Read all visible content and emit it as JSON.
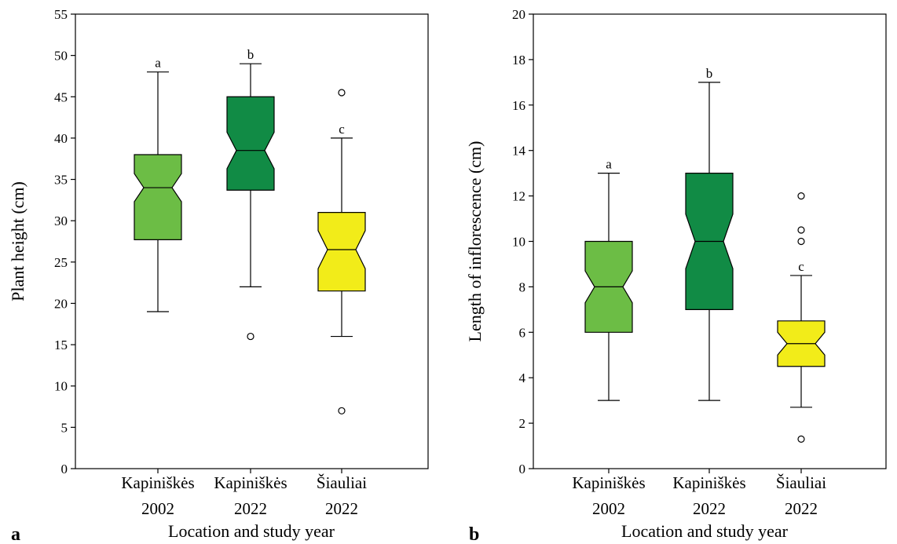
{
  "chart_data": [
    {
      "type": "boxplot",
      "panel_label": "a",
      "ylabel": "Plant height (cm)",
      "xlabel": "Location and study year",
      "ylim": [
        0,
        55
      ],
      "yticks": [
        0,
        5,
        10,
        15,
        20,
        25,
        30,
        35,
        40,
        45,
        50,
        55
      ],
      "notched": true,
      "grid": false,
      "categories": [
        {
          "line1": "Kapiniškės",
          "line2": "2002"
        },
        {
          "line1": "Kapiniškės",
          "line2": "2022"
        },
        {
          "line1": "Šiauliai",
          "line2": "2022"
        }
      ],
      "boxes": [
        {
          "whisker_low": 19,
          "q1": 27.7,
          "median": 34,
          "q3": 38,
          "whisker_high": 48,
          "notch_low": 32.3,
          "notch_high": 35.7,
          "outliers": [],
          "letter": "a",
          "color": "#6cbd45"
        },
        {
          "whisker_low": 22,
          "q1": 33.7,
          "median": 38.5,
          "q3": 45,
          "whisker_high": 49,
          "notch_low": 36.3,
          "notch_high": 40.7,
          "outliers": [
            16
          ],
          "letter": "b",
          "color": "#118b45"
        },
        {
          "whisker_low": 16,
          "q1": 21.5,
          "median": 26.5,
          "q3": 31,
          "whisker_high": 40,
          "notch_low": 24.2,
          "notch_high": 28.8,
          "outliers": [
            45.5,
            7
          ],
          "letter": "c",
          "color": "#f2ec19"
        }
      ]
    },
    {
      "type": "boxplot",
      "panel_label": "b",
      "ylabel": "Length of inflorescence (cm)",
      "xlabel": "Location and study year",
      "ylim": [
        0,
        20
      ],
      "yticks": [
        0,
        2,
        4,
        6,
        8,
        10,
        12,
        14,
        16,
        18,
        20
      ],
      "notched": true,
      "grid": false,
      "categories": [
        {
          "line1": "Kapiniškės",
          "line2": "2002"
        },
        {
          "line1": "Kapiniškės",
          "line2": "2022"
        },
        {
          "line1": "Šiauliai",
          "line2": "2022"
        }
      ],
      "boxes": [
        {
          "whisker_low": 3,
          "q1": 6,
          "median": 8,
          "q3": 10,
          "whisker_high": 13,
          "notch_low": 7.3,
          "notch_high": 8.7,
          "outliers": [],
          "letter": "a",
          "color": "#6cbd45"
        },
        {
          "whisker_low": 3,
          "q1": 7,
          "median": 10,
          "q3": 13,
          "whisker_high": 17,
          "notch_low": 8.8,
          "notch_high": 11.2,
          "outliers": [],
          "letter": "b",
          "color": "#118b45"
        },
        {
          "whisker_low": 2.7,
          "q1": 4.5,
          "median": 5.5,
          "q3": 6.5,
          "whisker_high": 8.5,
          "notch_low": 5.0,
          "notch_high": 6.0,
          "outliers": [
            12,
            10.5,
            10,
            1.3
          ],
          "letter": "c",
          "color": "#f2ec19"
        }
      ]
    }
  ]
}
